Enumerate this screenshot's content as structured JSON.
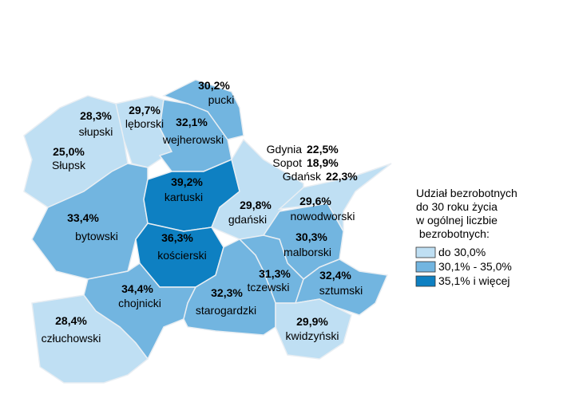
{
  "map": {
    "regions": [
      {
        "name": "pucki",
        "value": 30.2,
        "label": "30,2%"
      },
      {
        "name": "lęborski",
        "value": 29.7,
        "label": "29,7%"
      },
      {
        "name": "wejherowski",
        "value": 32.1,
        "label": "32,1%"
      },
      {
        "name": "słupski",
        "value": 28.3,
        "label": "28,3%"
      },
      {
        "name": "Słupsk",
        "value": 25.0,
        "label": "25,0%"
      },
      {
        "name": "bytowski",
        "value": 33.4,
        "label": "33,4%"
      },
      {
        "name": "kartuski",
        "value": 39.2,
        "label": "39,2%"
      },
      {
        "name": "kościerski",
        "value": 36.3,
        "label": "36,3%"
      },
      {
        "name": "gdański",
        "value": 29.8,
        "label": "29,8%"
      },
      {
        "name": "nowodworski",
        "value": 29.6,
        "label": "29,6%"
      },
      {
        "name": "malborski",
        "value": 30.3,
        "label": "30,3%"
      },
      {
        "name": "tczewski",
        "value": 31.3,
        "label": "31,3%"
      },
      {
        "name": "sztumski",
        "value": 32.4,
        "label": "32,4%"
      },
      {
        "name": "chojnicki",
        "value": 34.4,
        "label": "34,4%"
      },
      {
        "name": "starogardzki",
        "value": 32.3,
        "label": "32,3%"
      },
      {
        "name": "człuchowski",
        "value": 28.4,
        "label": "28,4%"
      },
      {
        "name": "kwidzyński",
        "value": 29.9,
        "label": "29,9%"
      }
    ],
    "cities": [
      {
        "name": "Gdynia",
        "value": 22.5,
        "label": "22,5%"
      },
      {
        "name": "Sopot",
        "value": 18.9,
        "label": "18,9%"
      },
      {
        "name": "Gdańsk",
        "value": 22.3,
        "label": "22,3%"
      }
    ],
    "legend": {
      "title": [
        "Udział bezrobotnych",
        "do 30 roku życia",
        "w ogólnej liczbie",
        " bezrobotnych:"
      ],
      "items": [
        {
          "label": "do 30,0%",
          "max": 30.0,
          "color": "#bfdff3"
        },
        {
          "label": "30,1% - 35,0%",
          "min": 30.1,
          "max": 35.0,
          "color": "#72b5e0"
        },
        {
          "label": "35,1% i więcej",
          "min": 35.1,
          "color": "#0e80c2"
        }
      ]
    }
  }
}
